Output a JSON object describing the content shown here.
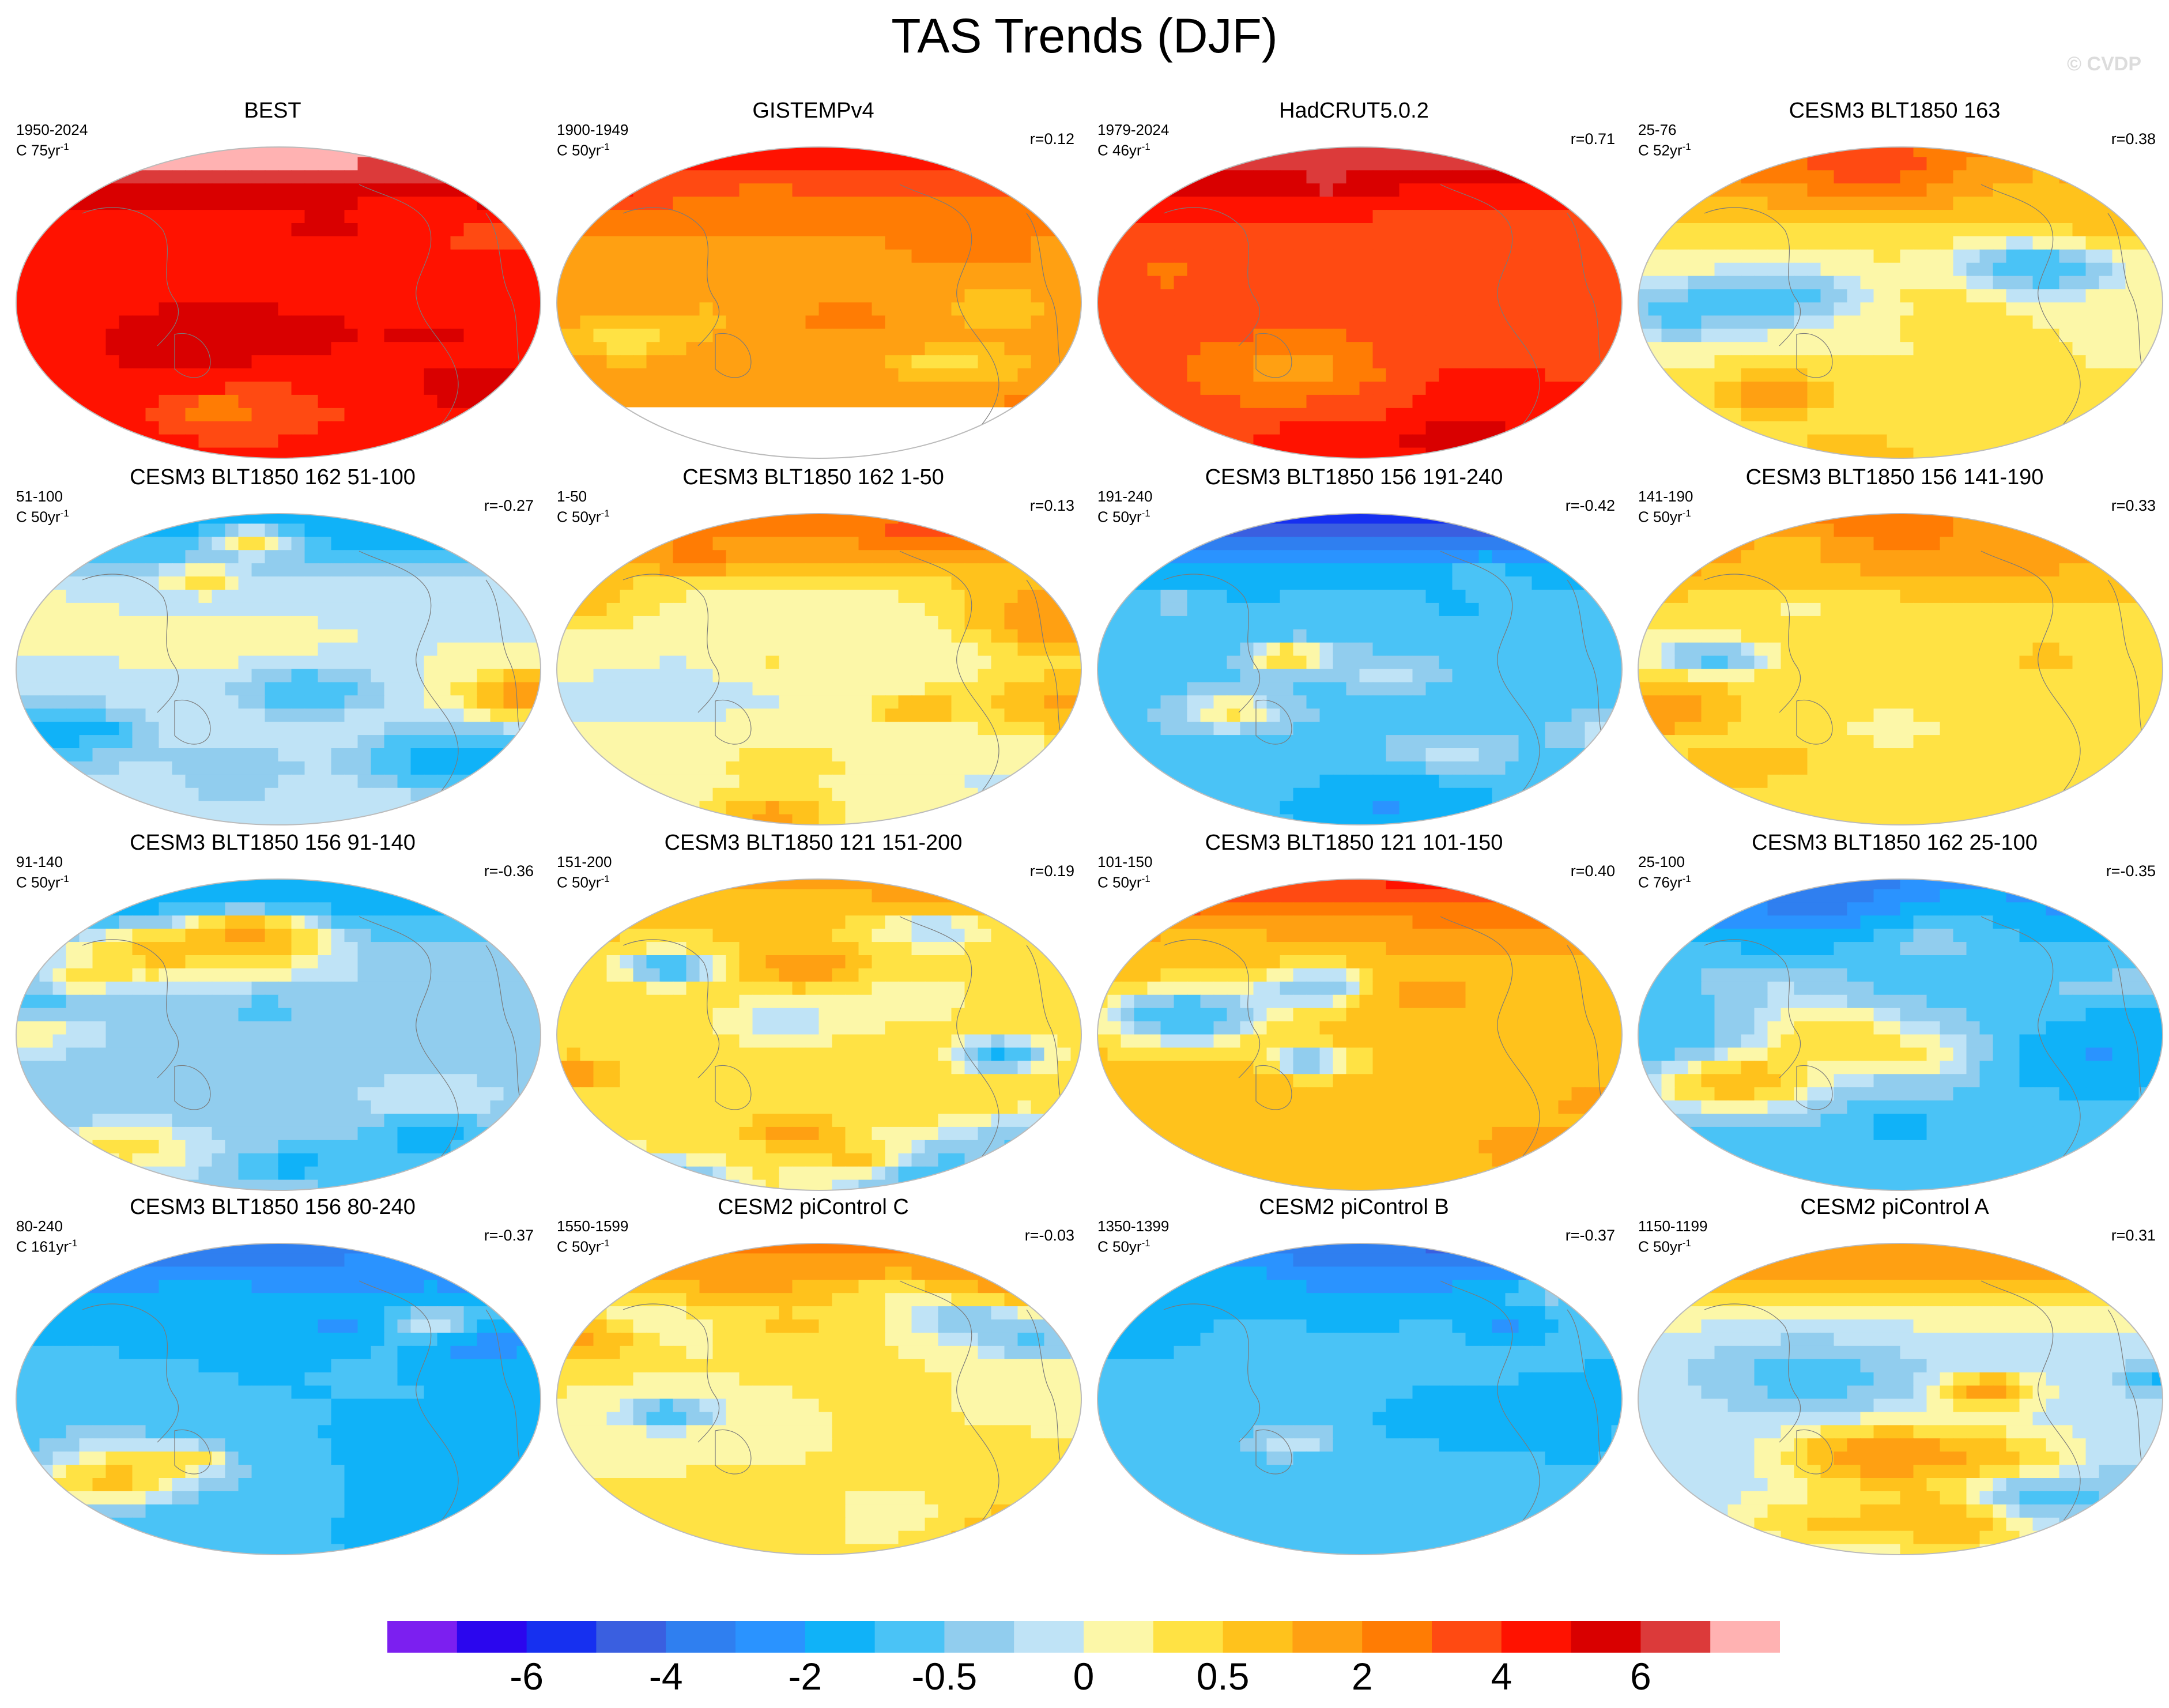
{
  "title": "TAS Trends (DJF)",
  "watermark": "© CVDP",
  "colorbar": {
    "colors": [
      "#7c1ff0",
      "#2b06ee",
      "#1630f0",
      "#3a5fe0",
      "#2f7ff0",
      "#2a93ff",
      "#10b2f8",
      "#4ac3f6",
      "#91cdee",
      "#bfe3f6",
      "#fcf7a8",
      "#ffe244",
      "#ffc21c",
      "#ffa012",
      "#ff7c04",
      "#ff4a12",
      "#ff1200",
      "#d90000",
      "#dc3a3a",
      "#ffb2b2"
    ],
    "tick_labels": [
      "-6",
      "-4",
      "-2",
      "-0.5",
      "0",
      "0.5",
      "2",
      "4",
      "6"
    ],
    "tick_boundaries": [
      2,
      4,
      6,
      8,
      10,
      12,
      14,
      16,
      18
    ]
  },
  "panels": [
    {
      "title": "BEST",
      "period": "1950-2024",
      "rate": "C 75yr",
      "r": "",
      "bias": 4.6,
      "seed": 11,
      "arctic": 3,
      "antarctic": false
    },
    {
      "title": "GISTEMPv4",
      "period": "1900-1949",
      "rate": "C 50yr",
      "r": "r=0.12",
      "bias": 1.9,
      "seed": 23,
      "arctic": 2.5,
      "antarctic": true
    },
    {
      "title": "HadCRUT5.0.2",
      "period": "1979-2024",
      "rate": "C 46yr",
      "r": "r=0.71",
      "bias": 3.6,
      "seed": 37,
      "arctic": 3,
      "antarctic": false
    },
    {
      "title": "CESM3 BLT1850 163",
      "period": "25-76",
      "rate": "C 52yr",
      "r": "r=0.38",
      "bias": 0.2,
      "seed": 41,
      "arctic": 2.5,
      "antarctic": false
    },
    {
      "title": "CESM3 BLT1850 162 51-100",
      "period": "51-100",
      "rate": "C 50yr",
      "r": "r=-0.27",
      "bias": 0.0,
      "seed": 53,
      "arctic": -1.5,
      "antarctic": false
    },
    {
      "title": "CESM3 BLT1850 162 1-50",
      "period": "1-50",
      "rate": "C 50yr",
      "r": "r=0.13",
      "bias": 0.0,
      "seed": 61,
      "arctic": 2.5,
      "antarctic": false
    },
    {
      "title": "CESM3 BLT1850 156 191-240",
      "period": "191-240",
      "rate": "C 50yr",
      "r": "r=-0.42",
      "bias": -0.6,
      "seed": 71,
      "arctic": -5,
      "antarctic": false
    },
    {
      "title": "CESM3 BLT1850 156 141-190",
      "period": "141-190",
      "rate": "C 50yr",
      "r": "r=0.33",
      "bias": 0.4,
      "seed": 83,
      "arctic": 2.5,
      "antarctic": false
    },
    {
      "title": "CESM3 BLT1850 156 91-140",
      "period": "91-140",
      "rate": "C 50yr",
      "r": "r=-0.36",
      "bias": -0.3,
      "seed": 97,
      "arctic": -1.5,
      "antarctic": false
    },
    {
      "title": "CESM3 BLT1850 121 151-200",
      "period": "151-200",
      "rate": "C 50yr",
      "r": "r=0.19",
      "bias": 0.3,
      "seed": 101,
      "arctic": 0.8,
      "antarctic": false
    },
    {
      "title": "CESM3 BLT1850 121 101-150",
      "period": "101-150",
      "rate": "C 50yr",
      "r": "r=0.40",
      "bias": 0.6,
      "seed": 113,
      "arctic": 3.5,
      "antarctic": false
    },
    {
      "title": "CESM3 BLT1850 162 25-100",
      "period": "25-100",
      "rate": "C 76yr",
      "r": "r=-0.35",
      "bias": -0.6,
      "seed": 127,
      "arctic": -2.5,
      "antarctic": false
    },
    {
      "title": "CESM3 BLT1850 156 80-240",
      "period": "80-240",
      "rate": "C 161yr",
      "r": "r=-0.37",
      "bias": -1.0,
      "seed": 131,
      "arctic": -2.5,
      "antarctic": false
    },
    {
      "title": "CESM2 piControl C",
      "period": "1550-1599",
      "rate": "C 50yr",
      "r": "r=-0.03",
      "bias": 0.2,
      "seed": 139,
      "arctic": 2,
      "antarctic": false
    },
    {
      "title": "CESM2 piControl B",
      "period": "1350-1399",
      "rate": "C 50yr",
      "r": "r=-0.37",
      "bias": -0.6,
      "seed": 149,
      "arctic": -3,
      "antarctic": false
    },
    {
      "title": "CESM2 piControl A",
      "period": "1150-1199",
      "rate": "C 50yr",
      "r": "r=0.31",
      "bias": -0.1,
      "seed": 157,
      "arctic": 2,
      "antarctic": false
    }
  ]
}
